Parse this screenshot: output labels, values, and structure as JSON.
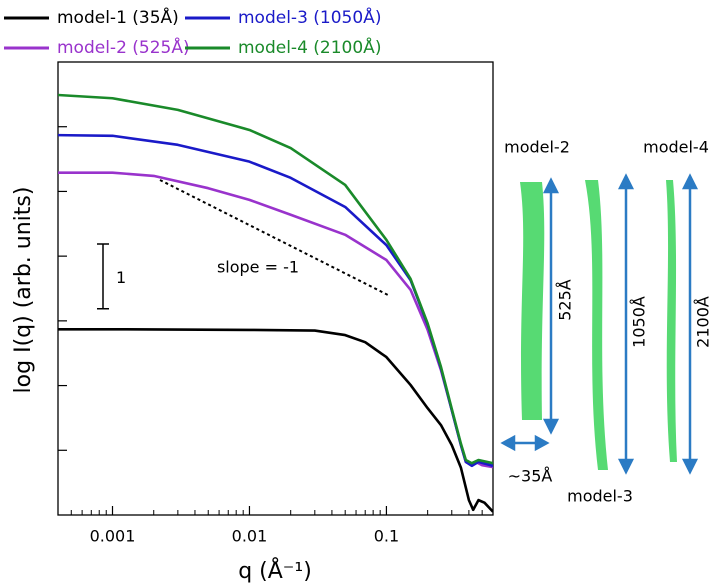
{
  "chart_data": {
    "type": "line",
    "xlabel": "q  (Å⁻¹)",
    "ylabel": "log I(q)  (arb. units)",
    "xscale": "log",
    "xlim": [
      0.0004,
      0.6
    ],
    "xticks": [
      0.001,
      0.01,
      0.1
    ],
    "xminorticks": [
      0.0004,
      0.0005,
      0.0006,
      0.0007,
      0.0008,
      0.0009,
      0.002,
      0.003,
      0.004,
      0.005,
      0.006,
      0.007,
      0.008,
      0.009,
      0.02,
      0.03,
      0.04,
      0.05,
      0.06,
      0.07,
      0.08,
      0.09,
      0.2,
      0.3,
      0.4,
      0.5,
      0.6
    ],
    "ylim": [
      -7,
      0
    ],
    "yticks": [
      -6,
      -5,
      -4,
      -3,
      -2,
      -1
    ],
    "ytick_labels": false,
    "scale_bar": 1,
    "annotation": "slope = -1",
    "series": [
      {
        "name": "model-1 (35Å)",
        "color": "#000000",
        "x": [
          0.0004,
          0.001,
          0.01,
          0.03,
          0.05,
          0.07,
          0.1,
          0.15,
          0.2,
          0.25,
          0.3,
          0.35,
          0.4,
          0.43,
          0.47,
          0.52,
          0.6
        ],
        "values": [
          -4.13,
          -4.13,
          -4.14,
          -4.15,
          -4.22,
          -4.33,
          -4.56,
          -4.99,
          -5.35,
          -5.61,
          -5.92,
          -6.27,
          -6.77,
          -6.92,
          -6.77,
          -6.81,
          -6.95
        ]
      },
      {
        "name": "model-2 (525Å)",
        "color": "#9933cc",
        "x": [
          0.0004,
          0.001,
          0.002,
          0.005,
          0.01,
          0.02,
          0.05,
          0.1,
          0.15,
          0.2,
          0.25,
          0.3,
          0.35,
          0.38,
          0.42,
          0.45,
          0.5,
          0.6
        ],
        "values": [
          -1.71,
          -1.71,
          -1.76,
          -1.95,
          -2.13,
          -2.36,
          -2.67,
          -3.06,
          -3.52,
          -4.14,
          -4.76,
          -5.38,
          -5.92,
          -6.18,
          -6.23,
          -6.18,
          -6.23,
          -6.26
        ]
      },
      {
        "name": "model-3 (1050Å)",
        "color": "#1a1ac8",
        "x": [
          0.0004,
          0.001,
          0.003,
          0.01,
          0.02,
          0.05,
          0.1,
          0.15,
          0.2,
          0.25,
          0.3,
          0.35,
          0.38,
          0.42,
          0.47,
          0.6
        ],
        "values": [
          -1.13,
          -1.14,
          -1.28,
          -1.54,
          -1.79,
          -2.24,
          -2.83,
          -3.37,
          -4.06,
          -4.73,
          -5.38,
          -5.92,
          -6.18,
          -6.24,
          -6.18,
          -6.24
        ]
      },
      {
        "name": "model-4 (2100Å)",
        "color": "#1a8a2a",
        "x": [
          0.0004,
          0.001,
          0.003,
          0.01,
          0.02,
          0.05,
          0.1,
          0.15,
          0.2,
          0.25,
          0.3,
          0.35,
          0.38,
          0.42,
          0.47,
          0.6
        ],
        "values": [
          -0.51,
          -0.56,
          -0.74,
          -1.05,
          -1.33,
          -1.9,
          -2.75,
          -3.35,
          -4.04,
          -4.71,
          -5.36,
          -5.9,
          -6.15,
          -6.2,
          -6.15,
          -6.2
        ]
      }
    ],
    "illustration": {
      "models": [
        {
          "name": "model-2",
          "length": "525Å"
        },
        {
          "name": "model-3",
          "length": "1050Å"
        },
        {
          "name": "model-4",
          "length": "2100Å"
        }
      ],
      "width": "~35Å"
    }
  }
}
